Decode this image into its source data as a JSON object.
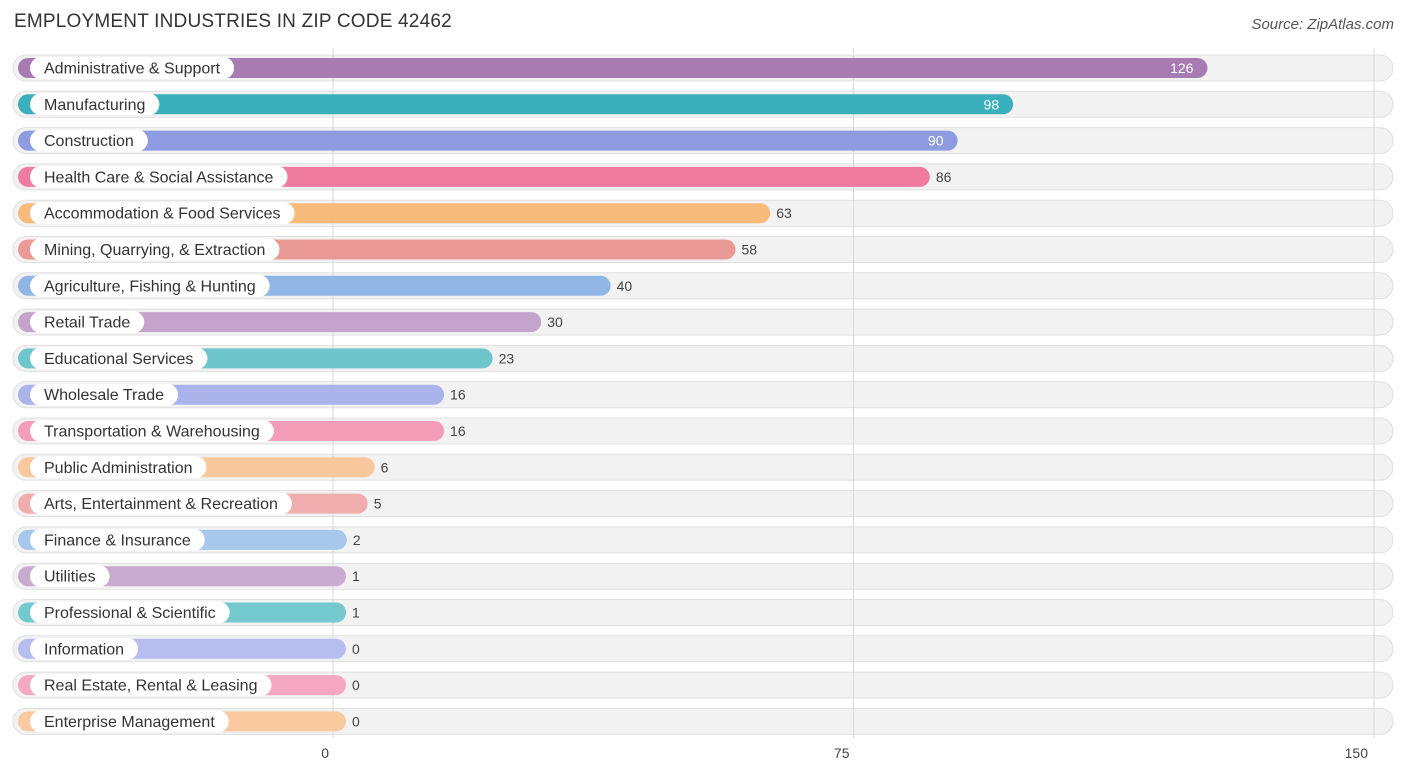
{
  "title": "EMPLOYMENT INDUSTRIES IN ZIP CODE 42462",
  "source": "Source: ZipAtlas.com",
  "chart_data": {
    "type": "bar",
    "orientation": "horizontal",
    "title": "EMPLOYMENT INDUSTRIES IN ZIP CODE 42462",
    "xlim": [
      0,
      150
    ],
    "xticks": [
      0,
      75,
      150
    ],
    "grid": true,
    "categories": [
      "Administrative & Support",
      "Manufacturing",
      "Construction",
      "Health Care & Social Assistance",
      "Accommodation & Food Services",
      "Mining, Quarrying, & Extraction",
      "Agriculture, Fishing & Hunting",
      "Retail Trade",
      "Educational Services",
      "Wholesale Trade",
      "Transportation & Warehousing",
      "Public Administration",
      "Arts, Entertainment & Recreation",
      "Finance & Insurance",
      "Utilities",
      "Professional & Scientific",
      "Information",
      "Real Estate, Rental & Leasing",
      "Enterprise Management"
    ],
    "values": [
      126,
      98,
      90,
      86,
      63,
      58,
      40,
      30,
      23,
      16,
      16,
      6,
      5,
      2,
      1,
      1,
      0,
      0,
      0
    ],
    "colors": [
      "#a87bb3",
      "#3ab0bc",
      "#8f9be0",
      "#f07ba0",
      "#f8bb7c",
      "#e99a94",
      "#90b6e6",
      "#c4a3cc",
      "#6ec5cc",
      "#aab3ea",
      "#f49db9",
      "#f9c79c",
      "#efaead",
      "#a8c7ec",
      "#c9abd0",
      "#74c9cf",
      "#b8bdf0",
      "#f6a7c1",
      "#f9c99f"
    ]
  }
}
